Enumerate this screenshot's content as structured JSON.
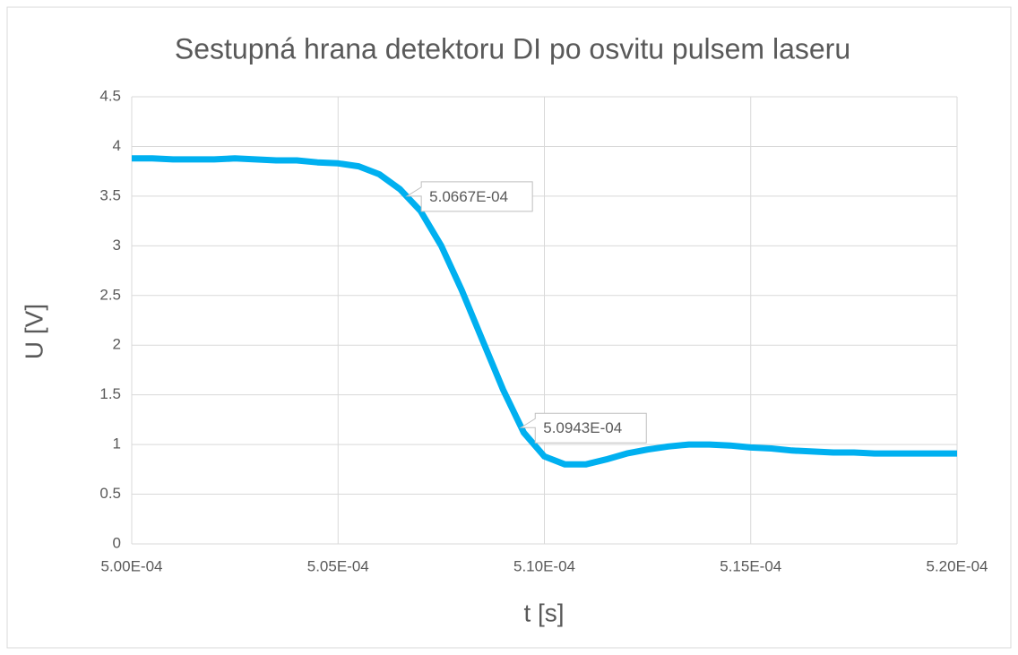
{
  "chart_data": {
    "type": "line",
    "title": "Sestupná hrana detektoru DI po osvitu pulsem laseru",
    "xlabel": "t [s]",
    "ylabel": "U [V]",
    "x": [
      0.0005,
      0.0005005,
      0.000501,
      0.0005015,
      0.000502,
      0.0005025,
      0.000503,
      0.0005035,
      0.000504,
      0.0005045,
      0.000505,
      0.0005055,
      0.000506,
      0.0005065,
      0.000507,
      0.0005075,
      0.000508,
      0.0005085,
      0.000509,
      0.0005095,
      0.00051,
      0.0005105,
      0.000511,
      0.0005115,
      0.000512,
      0.0005125,
      0.000513,
      0.0005135,
      0.000514,
      0.0005145,
      0.000515,
      0.0005155,
      0.000516,
      0.0005165,
      0.000517,
      0.0005175,
      0.000518,
      0.0005185,
      0.000519,
      0.0005195,
      0.00052
    ],
    "values": [
      3.88,
      3.88,
      3.87,
      3.87,
      3.87,
      3.88,
      3.87,
      3.86,
      3.86,
      3.84,
      3.83,
      3.8,
      3.72,
      3.57,
      3.35,
      3.0,
      2.55,
      2.05,
      1.55,
      1.12,
      0.88,
      0.8,
      0.8,
      0.85,
      0.91,
      0.95,
      0.98,
      1.0,
      1.0,
      0.99,
      0.97,
      0.96,
      0.94,
      0.93,
      0.92,
      0.92,
      0.91,
      0.91,
      0.91,
      0.91,
      0.91
    ],
    "color": "#00b0f0",
    "xlim": [
      0.0005,
      0.00052
    ],
    "xticks": [
      {
        "value": 0.0005,
        "label": "5.00E-04"
      },
      {
        "value": 0.000505,
        "label": "5.05E-04"
      },
      {
        "value": 0.00051,
        "label": "5.10E-04"
      },
      {
        "value": 0.000515,
        "label": "5.15E-04"
      },
      {
        "value": 0.00052,
        "label": "5.20E-04"
      }
    ],
    "ylim": [
      0,
      4.5
    ],
    "yticks": [
      0,
      0.5,
      1,
      1.5,
      2,
      2.5,
      3,
      3.5,
      4,
      4.5
    ],
    "grid": true,
    "annotations": [
      {
        "text": "5.0667E-04",
        "x": 0.00050667,
        "y": 3.5
      },
      {
        "text": "5.0943E-04",
        "x": 0.00050943,
        "y": 1.17
      }
    ]
  }
}
